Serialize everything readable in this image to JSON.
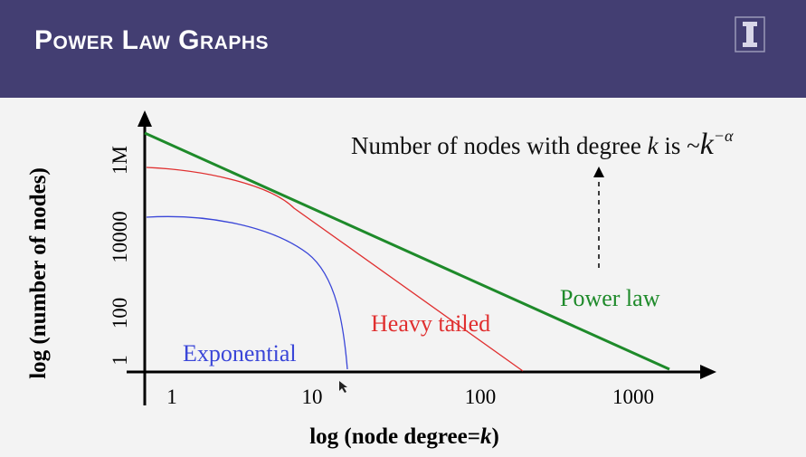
{
  "header": {
    "title": "Power Law Graphs",
    "logo_icon": "university-i-logo-icon"
  },
  "annotation": {
    "prefix": "Number of nodes with degree ",
    "k": "k",
    "is": " is ~",
    "k2": "k",
    "exponent": "−α"
  },
  "chart_data": {
    "type": "line",
    "xlabel_prefix": "log (node degree=",
    "xlabel_var": "k",
    "xlabel_suffix": ")",
    "ylabel": "log (number of nodes)",
    "x_ticks": [
      "1",
      "10",
      "100",
      "1000"
    ],
    "y_ticks": [
      "1",
      "100",
      "10000",
      "1M"
    ],
    "series": [
      {
        "name": "Power law",
        "color": "#1e8a2a"
      },
      {
        "name": "Heavy tailed",
        "color": "#e03030"
      },
      {
        "name": "Exponential",
        "color": "#3a46d8"
      }
    ]
  }
}
